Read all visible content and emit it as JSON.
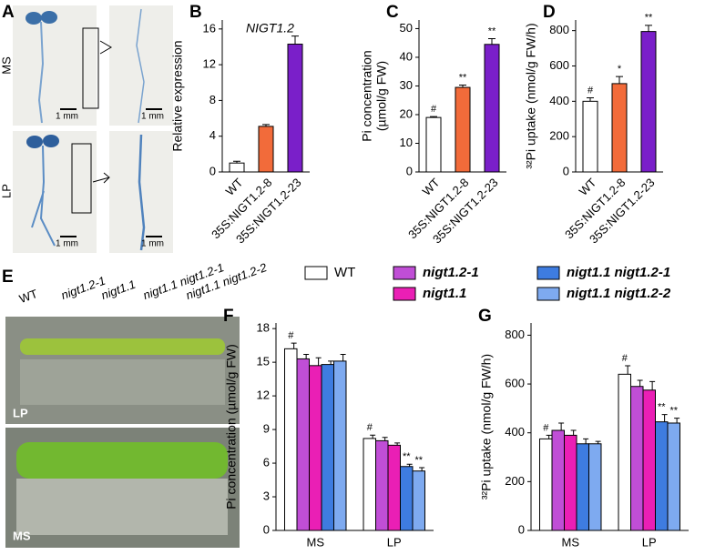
{
  "photos": {
    "a": {
      "panel": "A",
      "rows": [
        "MS",
        "LP"
      ],
      "scale": "1 mm"
    },
    "e": {
      "panel": "E",
      "genotypes": [
        "WT",
        "nigt1.2-1",
        "nigt1.1",
        "nigt1.1 nigt1.2-1",
        "nigt1.1 nigt1.2-2"
      ],
      "plates": [
        "LP",
        "MS"
      ]
    }
  },
  "chart_data": [
    {
      "type": "bar",
      "panel": "B",
      "title": "NIGT1.2",
      "ylabel": [
        "Relative expression"
      ],
      "categories": [
        "WT",
        "35S:NIGT1.2-8",
        "35S:NIGT1.2-23"
      ],
      "colors": [
        "#ffffff",
        "#f26b3a",
        "#7a1fc9"
      ],
      "values": [
        1.0,
        5.1,
        14.3
      ],
      "errors": [
        0.2,
        0.2,
        0.9
      ],
      "annotations": [
        null,
        null,
        null
      ],
      "ylim": [
        0,
        17
      ],
      "yticks": [
        0,
        4,
        8,
        12,
        16
      ]
    },
    {
      "type": "bar",
      "panel": "C",
      "ylabel": [
        "Pi concentration",
        "(µmol/g FW)"
      ],
      "categories": [
        "WT",
        "35S:NIGT1.2-8",
        "35S:NIGT1.2-23"
      ],
      "colors": [
        "#ffffff",
        "#f26b3a",
        "#7a1fc9"
      ],
      "values": [
        19,
        29.5,
        44.5
      ],
      "errors": [
        0.3,
        0.8,
        2
      ],
      "annotations": [
        "#",
        "**",
        "**"
      ],
      "ylim": [
        0,
        53
      ],
      "yticks": [
        0,
        10,
        20,
        30,
        40,
        50
      ]
    },
    {
      "type": "bar",
      "panel": "D",
      "ylabel": [
        "³²Pi uptake (nmol/g FW/h)"
      ],
      "categories": [
        "WT",
        "35S:NIGT1.2-8",
        "35S:NIGT1.2-23"
      ],
      "colors": [
        "#ffffff",
        "#f26b3a",
        "#7a1fc9"
      ],
      "values": [
        400,
        500,
        795
      ],
      "errors": [
        20,
        40,
        35
      ],
      "annotations": [
        "#",
        "*",
        "**"
      ],
      "ylim": [
        0,
        860
      ],
      "yticks": [
        0,
        200,
        400,
        600,
        800
      ]
    },
    {
      "type": "grouped",
      "panel": "F",
      "ylabel": [
        "Pi concentration (µmol/g FW)"
      ],
      "categories": [
        "MS",
        "LP"
      ],
      "ylim": [
        0,
        18.5
      ],
      "yticks": [
        0,
        3,
        6,
        9,
        12,
        15,
        18
      ],
      "series": [
        {
          "name": "WT",
          "color": "#ffffff",
          "values": [
            16.2,
            8.2
          ],
          "errors": [
            0.5,
            0.3
          ],
          "annotations": [
            "#",
            "#"
          ]
        },
        {
          "name": "nigt1.2-1",
          "color": "#c04ed6",
          "values": [
            15.3,
            8.0
          ],
          "errors": [
            0.4,
            0.3
          ],
          "annotations": [
            null,
            null
          ]
        },
        {
          "name": "nigt1.1",
          "color": "#ea1fb5",
          "values": [
            14.7,
            7.6
          ],
          "errors": [
            0.7,
            0.2
          ],
          "annotations": [
            null,
            null
          ]
        },
        {
          "name": "nigt1.1 nigt1.2-1",
          "color": "#3e7ce0",
          "values": [
            14.8,
            5.7
          ],
          "errors": [
            0.3,
            0.2
          ],
          "annotations": [
            null,
            "**"
          ]
        },
        {
          "name": "nigt1.1 nigt1.2-2",
          "color": "#7eaaf0",
          "values": [
            15.1,
            5.3
          ],
          "errors": [
            0.6,
            0.3
          ],
          "annotations": [
            null,
            "**"
          ]
        }
      ]
    },
    {
      "type": "grouped",
      "panel": "G",
      "ylabel": [
        "³²Pi uptake (nmol/g FW/h)"
      ],
      "categories": [
        "MS",
        "LP"
      ],
      "ylim": [
        0,
        850
      ],
      "yticks": [
        0,
        200,
        400,
        600,
        800
      ],
      "series": [
        {
          "color": "#ffffff",
          "values": [
            375,
            640
          ],
          "errors": [
            15,
            35
          ],
          "annotations": [
            "#",
            "#"
          ]
        },
        {
          "color": "#c04ed6",
          "values": [
            410,
            590
          ],
          "errors": [
            30,
            25
          ],
          "annotations": [
            null,
            null
          ]
        },
        {
          "color": "#ea1fb5",
          "values": [
            390,
            575
          ],
          "errors": [
            20,
            35
          ],
          "annotations": [
            null,
            null
          ]
        },
        {
          "color": "#3e7ce0",
          "values": [
            355,
            445
          ],
          "errors": [
            20,
            30
          ],
          "annotations": [
            null,
            "**"
          ]
        },
        {
          "color": "#7eaaf0",
          "values": [
            355,
            440
          ],
          "errors": [
            10,
            20
          ],
          "annotations": [
            null,
            "**"
          ]
        }
      ]
    }
  ]
}
